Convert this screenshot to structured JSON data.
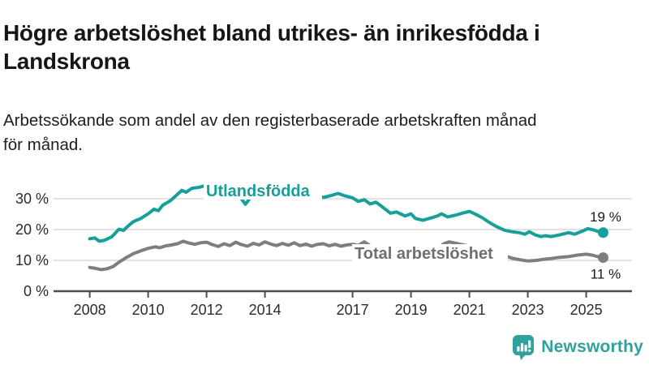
{
  "header": {
    "title_lines": [
      "Högre arbetslöshet bland utrikes- än inrikesfödda i",
      "Landskrona"
    ],
    "subtitle_lines": [
      "Arbetssökande som andel av den registerbaserade arbetskraften månad",
      "för månad."
    ]
  },
  "chart_data": {
    "type": "line",
    "title": "Högre arbetslöshet bland utrikes- än inrikesfödda i Landskrona",
    "subtitle": "Arbetssökande som andel av den registerbaserade arbetskraften månad för månad.",
    "grid": "horizontal",
    "x_axis": {
      "label": "",
      "ticks": [
        2008,
        2010,
        2012,
        2014,
        2017,
        2019,
        2021,
        2023,
        2025
      ],
      "labels": [
        "2008",
        "2010",
        "2012",
        "2014",
        "2017",
        "2019",
        "2021",
        "2023",
        "2025"
      ],
      "range": [
        2007.2,
        2025.9
      ]
    },
    "y_axis": {
      "label": "",
      "unit": "%",
      "ticks": [
        0,
        10,
        20,
        30
      ],
      "labels": [
        "0 %",
        "10 %",
        "20 %",
        "30 %"
      ],
      "range": [
        0,
        37
      ]
    },
    "style": {
      "grid_color": "#d9d9d9",
      "axis_color": "#4d4d4d",
      "tick_label_color": "#2b2b2b",
      "value_label_color": "#1a1a1a",
      "background": "#ffffff"
    },
    "series": [
      {
        "name": "Utlandsfödda",
        "color": "#16a099",
        "label_color": "#16a099",
        "end_label": "19 %",
        "end_value": 19,
        "end_label_position": "above",
        "label_box": [
          251,
          14,
          146,
          22
        ],
        "points": [
          [
            2008.0,
            17.0
          ],
          [
            2008.17,
            17.3
          ],
          [
            2008.33,
            16.2
          ],
          [
            2008.5,
            16.5
          ],
          [
            2008.75,
            17.6
          ],
          [
            2009.0,
            20.1
          ],
          [
            2009.15,
            19.7
          ],
          [
            2009.33,
            21.3
          ],
          [
            2009.5,
            22.6
          ],
          [
            2009.75,
            23.6
          ],
          [
            2010.0,
            25.1
          ],
          [
            2010.2,
            26.6
          ],
          [
            2010.35,
            26.1
          ],
          [
            2010.5,
            27.9
          ],
          [
            2010.75,
            29.3
          ],
          [
            2011.0,
            31.4
          ],
          [
            2011.15,
            32.7
          ],
          [
            2011.3,
            32.1
          ],
          [
            2011.5,
            33.4
          ],
          [
            2011.75,
            33.7
          ],
          [
            2012.0,
            34.4
          ],
          [
            2012.25,
            34.1
          ],
          [
            2012.5,
            34.6
          ],
          [
            2012.75,
            33.9
          ],
          [
            2012.9,
            33.8
          ],
          [
            2013.33,
            28.2
          ],
          [
            2013.75,
            33.5
          ],
          [
            2014.0,
            33.9
          ],
          [
            2014.33,
            33.2
          ],
          [
            2014.67,
            32.8
          ],
          [
            2015.0,
            32.9
          ],
          [
            2015.33,
            32.0
          ],
          [
            2015.67,
            31.4
          ],
          [
            2016.0,
            30.4
          ],
          [
            2016.25,
            31.0
          ],
          [
            2016.5,
            31.7
          ],
          [
            2016.75,
            30.9
          ],
          [
            2017.0,
            30.3
          ],
          [
            2017.2,
            29.1
          ],
          [
            2017.4,
            29.7
          ],
          [
            2017.6,
            28.3
          ],
          [
            2017.8,
            28.9
          ],
          [
            2018.0,
            27.5
          ],
          [
            2018.3,
            25.3
          ],
          [
            2018.5,
            25.7
          ],
          [
            2018.8,
            24.4
          ],
          [
            2019.0,
            25.1
          ],
          [
            2019.15,
            23.6
          ],
          [
            2019.4,
            23.0
          ],
          [
            2019.7,
            23.8
          ],
          [
            2019.9,
            24.4
          ],
          [
            2020.05,
            25.1
          ],
          [
            2020.25,
            24.1
          ],
          [
            2020.5,
            24.6
          ],
          [
            2020.75,
            25.3
          ],
          [
            2021.0,
            25.9
          ],
          [
            2021.25,
            24.8
          ],
          [
            2021.45,
            23.8
          ],
          [
            2021.65,
            22.5
          ],
          [
            2021.9,
            21.1
          ],
          [
            2022.2,
            19.8
          ],
          [
            2022.45,
            19.3
          ],
          [
            2022.7,
            19.0
          ],
          [
            2022.9,
            18.5
          ],
          [
            2023.05,
            19.3
          ],
          [
            2023.25,
            18.3
          ],
          [
            2023.45,
            17.7
          ],
          [
            2023.6,
            18.0
          ],
          [
            2023.8,
            17.7
          ],
          [
            2024.1,
            18.3
          ],
          [
            2024.4,
            19.0
          ],
          [
            2024.6,
            18.5
          ],
          [
            2024.9,
            19.6
          ],
          [
            2025.05,
            20.3
          ],
          [
            2025.25,
            19.9
          ],
          [
            2025.45,
            19.2
          ],
          [
            2025.58,
            19.0
          ]
        ]
      },
      {
        "name": "Total arbetslöshet",
        "color": "#7e7e7e",
        "label_color": "#6f6f6f",
        "end_label": "11 %",
        "end_value": 11,
        "end_label_position": "below",
        "label_box": [
          434,
          91,
          192,
          22
        ],
        "points": [
          [
            2008.0,
            7.7
          ],
          [
            2008.2,
            7.4
          ],
          [
            2008.4,
            7.0
          ],
          [
            2008.6,
            7.3
          ],
          [
            2008.8,
            8.0
          ],
          [
            2009.0,
            9.4
          ],
          [
            2009.25,
            10.9
          ],
          [
            2009.5,
            12.2
          ],
          [
            2009.75,
            13.1
          ],
          [
            2010.0,
            13.9
          ],
          [
            2010.25,
            14.4
          ],
          [
            2010.4,
            14.1
          ],
          [
            2010.6,
            14.7
          ],
          [
            2010.8,
            15.0
          ],
          [
            2011.0,
            15.4
          ],
          [
            2011.2,
            16.2
          ],
          [
            2011.4,
            15.6
          ],
          [
            2011.6,
            15.2
          ],
          [
            2011.8,
            15.7
          ],
          [
            2012.0,
            15.9
          ],
          [
            2012.2,
            15.1
          ],
          [
            2012.4,
            14.5
          ],
          [
            2012.6,
            15.4
          ],
          [
            2012.8,
            14.8
          ],
          [
            2013.0,
            15.9
          ],
          [
            2013.2,
            15.1
          ],
          [
            2013.4,
            14.6
          ],
          [
            2013.6,
            15.5
          ],
          [
            2013.8,
            15.0
          ],
          [
            2014.0,
            16.0
          ],
          [
            2014.2,
            15.3
          ],
          [
            2014.4,
            14.8
          ],
          [
            2014.6,
            15.5
          ],
          [
            2014.8,
            14.9
          ],
          [
            2015.0,
            15.7
          ],
          [
            2015.2,
            14.8
          ],
          [
            2015.4,
            15.3
          ],
          [
            2015.6,
            14.6
          ],
          [
            2015.8,
            15.2
          ],
          [
            2016.0,
            15.4
          ],
          [
            2016.2,
            14.7
          ],
          [
            2016.4,
            15.2
          ],
          [
            2016.6,
            14.6
          ],
          [
            2016.8,
            15.0
          ],
          [
            2017.0,
            15.2
          ],
          [
            2017.2,
            14.9
          ],
          [
            2017.4,
            16.0
          ],
          [
            2017.6,
            14.8
          ],
          [
            2017.8,
            14.4
          ],
          [
            2018.0,
            14.6
          ],
          [
            2018.3,
            13.8
          ],
          [
            2018.6,
            13.5
          ],
          [
            2019.0,
            13.6
          ],
          [
            2019.3,
            13.0
          ],
          [
            2019.6,
            12.8
          ],
          [
            2019.9,
            13.4
          ],
          [
            2020.1,
            15.3
          ],
          [
            2020.3,
            16.0
          ],
          [
            2020.5,
            15.6
          ],
          [
            2020.8,
            15.0
          ],
          [
            2021.0,
            14.6
          ],
          [
            2021.3,
            13.8
          ],
          [
            2021.6,
            12.9
          ],
          [
            2021.9,
            12.2
          ],
          [
            2022.2,
            11.5
          ],
          [
            2022.5,
            10.6
          ],
          [
            2022.8,
            10.1
          ],
          [
            2023.0,
            9.8
          ],
          [
            2023.3,
            10.0
          ],
          [
            2023.5,
            10.3
          ],
          [
            2023.8,
            10.6
          ],
          [
            2024.1,
            11.0
          ],
          [
            2024.4,
            11.2
          ],
          [
            2024.7,
            11.7
          ],
          [
            2025.0,
            12.0
          ],
          [
            2025.2,
            11.7
          ],
          [
            2025.4,
            11.2
          ],
          [
            2025.58,
            10.9
          ]
        ]
      }
    ]
  },
  "footer": {
    "brand": "Newsworthy",
    "brand_color": "#2fa29d"
  }
}
